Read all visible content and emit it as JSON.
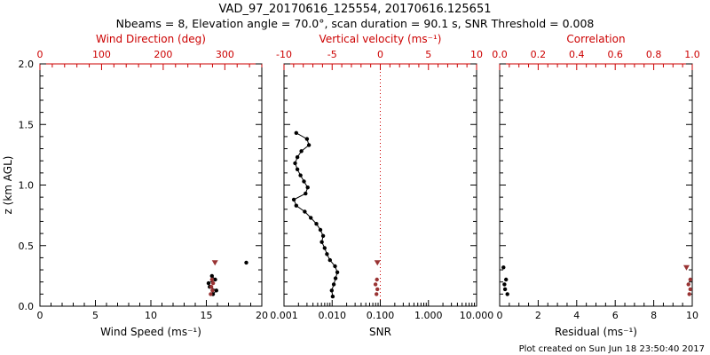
{
  "header": {
    "title": "VAD_97_20170616_125554, 20170616.125651",
    "subtitle": "Nbeams = 8, Elevation angle = 70.0°, scan duration = 90.1 s, SNR Threshold = 0.008"
  },
  "footer": {
    "created": "Plot created on Sun Jun 18 23:50:40 2017"
  },
  "colors": {
    "frame": "#000000",
    "secondary_axis": "#cc0000",
    "marker_primary": "#000000",
    "marker_secondary": "#993333",
    "refline": "#cc0000"
  },
  "chart_data": [
    {
      "name": "wind",
      "type": "scatter",
      "xlabel": "Wind Speed (ms⁻¹)",
      "xlim": [
        0,
        20
      ],
      "xticks": [
        0,
        5,
        10,
        15,
        20
      ],
      "xtick_labels": [
        "0",
        "5",
        "10",
        "15",
        "20"
      ],
      "xminor": 1,
      "x2label": "Wind Direction (deg)",
      "x2lim": [
        0,
        360
      ],
      "x2ticks": [
        0,
        100,
        200,
        300
      ],
      "x2tick_labels": [
        "0",
        "100",
        "200",
        "300"
      ],
      "x2minor": 20,
      "ylabel": "z (km AGL)",
      "ylim": [
        0,
        2
      ],
      "yticks": [
        0,
        0.5,
        1,
        1.5,
        2
      ],
      "ytick_labels": [
        "0.0",
        "0.5",
        "1.0",
        "1.5",
        "2.0"
      ],
      "yminor": 0.1,
      "series": [
        {
          "name": "wind-speed-profile",
          "axis": "x",
          "color": "#000000",
          "marker": "dot",
          "line": true,
          "points": [
            [
              15.6,
              0.1
            ],
            [
              15.9,
              0.13
            ],
            [
              15.3,
              0.16
            ],
            [
              15.2,
              0.19
            ],
            [
              15.8,
              0.22
            ],
            [
              15.5,
              0.25
            ]
          ]
        },
        {
          "name": "wind-speed-isolated",
          "axis": "x",
          "color": "#000000",
          "marker": "dot",
          "line": false,
          "points": [
            [
              18.6,
              0.36
            ]
          ]
        },
        {
          "name": "wind-direction",
          "axis": "x2",
          "color": "#993333",
          "marker": "dot",
          "line": false,
          "points": [
            [
              277,
              0.1
            ],
            [
              280,
              0.13
            ],
            [
              278,
              0.16
            ],
            [
              281,
              0.19
            ],
            [
              279,
              0.22
            ]
          ]
        },
        {
          "name": "wind-direction-top",
          "axis": "x2",
          "color": "#993333",
          "marker": "triangle",
          "line": false,
          "points": [
            [
              284,
              0.36
            ]
          ]
        }
      ]
    },
    {
      "name": "snr",
      "type": "scatter",
      "xlabel": "SNR",
      "xscale": "log",
      "xlim": [
        0.001,
        10
      ],
      "xticks": [
        0.001,
        0.01,
        0.1,
        1,
        10
      ],
      "xtick_labels": [
        "0.001",
        "0.010",
        "0.100",
        "1.000",
        "10.000"
      ],
      "x2label": "Vertical velocity (ms⁻¹)",
      "x2lim": [
        -10,
        10
      ],
      "x2ticks": [
        -10,
        -5,
        0,
        5,
        10
      ],
      "x2tick_labels": [
        "-10",
        "-5",
        "0",
        "5",
        "10"
      ],
      "x2minor": 1,
      "ylim": [
        0,
        2
      ],
      "yticks": [
        0,
        0.5,
        1,
        1.5,
        2
      ],
      "ytick_labels": [],
      "yminor": 0.1,
      "refline": {
        "axis": "x2",
        "value": 0
      },
      "series": [
        {
          "name": "snr-profile",
          "axis": "x",
          "color": "#000000",
          "marker": "dot",
          "line": true,
          "points": [
            [
              0.0018,
              1.43
            ],
            [
              0.003,
              1.38
            ],
            [
              0.0033,
              1.33
            ],
            [
              0.0023,
              1.28
            ],
            [
              0.0019,
              1.23
            ],
            [
              0.0017,
              1.18
            ],
            [
              0.0019,
              1.13
            ],
            [
              0.0022,
              1.08
            ],
            [
              0.0026,
              1.03
            ],
            [
              0.0031,
              0.98
            ],
            [
              0.0028,
              0.93
            ],
            [
              0.0016,
              0.88
            ],
            [
              0.0018,
              0.83
            ],
            [
              0.0027,
              0.78
            ],
            [
              0.0036,
              0.73
            ],
            [
              0.0047,
              0.68
            ],
            [
              0.0057,
              0.63
            ],
            [
              0.0065,
              0.58
            ],
            [
              0.0061,
              0.53
            ],
            [
              0.007,
              0.48
            ],
            [
              0.0078,
              0.43
            ],
            [
              0.009,
              0.38
            ],
            [
              0.0115,
              0.33
            ],
            [
              0.0128,
              0.28
            ],
            [
              0.0118,
              0.23
            ],
            [
              0.0108,
              0.18
            ],
            [
              0.0098,
              0.13
            ],
            [
              0.0103,
              0.08
            ]
          ]
        },
        {
          "name": "vertical-velocity",
          "axis": "x2",
          "color": "#993333",
          "marker": "dot",
          "line": false,
          "points": [
            [
              -0.4,
              0.1
            ],
            [
              -0.3,
              0.14
            ],
            [
              -0.5,
              0.18
            ],
            [
              -0.35,
              0.22
            ]
          ]
        },
        {
          "name": "vertical-velocity-top",
          "axis": "x2",
          "color": "#993333",
          "marker": "triangle",
          "line": false,
          "points": [
            [
              -0.3,
              0.36
            ]
          ]
        }
      ]
    },
    {
      "name": "residual",
      "type": "scatter",
      "xlabel": "Residual (ms⁻¹)",
      "xlim": [
        0,
        10
      ],
      "xticks": [
        0,
        2,
        4,
        6,
        8,
        10
      ],
      "xtick_labels": [
        "0",
        "2",
        "4",
        "6",
        "8",
        "10"
      ],
      "xminor": 0.5,
      "x2label": "Correlation",
      "x2lim": [
        0,
        1
      ],
      "x2ticks": [
        0,
        0.2,
        0.4,
        0.6,
        0.8,
        1
      ],
      "x2tick_labels": [
        "0.0",
        "0.2",
        "0.4",
        "0.6",
        "0.8",
        "1.0"
      ],
      "x2minor": 0.05,
      "ylim": [
        0,
        2
      ],
      "yticks": [
        0,
        0.5,
        1,
        1.5,
        2
      ],
      "ytick_labels": [],
      "yminor": 0.1,
      "series": [
        {
          "name": "residual-profile",
          "axis": "x",
          "color": "#000000",
          "marker": "dot",
          "line": false,
          "points": [
            [
              0.4,
              0.1
            ],
            [
              0.28,
              0.14
            ],
            [
              0.25,
              0.18
            ],
            [
              0.33,
              0.22
            ],
            [
              0.2,
              0.32
            ]
          ]
        },
        {
          "name": "correlation",
          "axis": "x2",
          "color": "#993333",
          "marker": "dot",
          "line": false,
          "points": [
            [
              0.985,
              0.1
            ],
            [
              0.99,
              0.14
            ],
            [
              0.98,
              0.18
            ],
            [
              0.99,
              0.22
            ]
          ]
        },
        {
          "name": "correlation-top",
          "axis": "x2",
          "color": "#993333",
          "marker": "triangle",
          "line": false,
          "points": [
            [
              0.97,
              0.32
            ]
          ]
        }
      ]
    }
  ]
}
